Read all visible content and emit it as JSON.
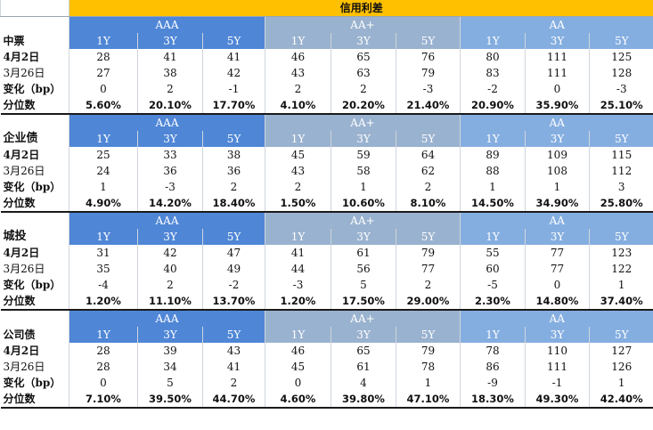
{
  "title": "信用利差",
  "grade_labels": [
    "AAA",
    "AA+",
    "AA"
  ],
  "tenor_labels": [
    "1Y",
    "3Y",
    "5Y"
  ],
  "colors": {
    "header_bar": "#ffc000",
    "aaa": "#4f86d6",
    "aa_plus": "#99b2cf",
    "aa": "#85aee0"
  },
  "sections": [
    {
      "name": "中票",
      "rows": [
        {
          "label": "4月2日",
          "values": [
            "28",
            "41",
            "41",
            "46",
            "65",
            "76",
            "80",
            "111",
            "125"
          ]
        },
        {
          "label": "3月26日",
          "values": [
            "27",
            "38",
            "42",
            "43",
            "63",
            "79",
            "83",
            "111",
            "128"
          ]
        },
        {
          "label": "变化（bp）",
          "values": [
            "0",
            "2",
            "-1",
            "2",
            "2",
            "-3",
            "-2",
            "0",
            "-3"
          ]
        },
        {
          "label": "分位数",
          "values": [
            "5.60%",
            "20.10%",
            "17.70%",
            "4.10%",
            "20.20%",
            "21.40%",
            "20.90%",
            "35.90%",
            "25.10%"
          ]
        }
      ]
    },
    {
      "name": "企业债",
      "rows": [
        {
          "label": "4月2日",
          "values": [
            "25",
            "33",
            "38",
            "45",
            "59",
            "64",
            "89",
            "109",
            "115"
          ]
        },
        {
          "label": "3月26日",
          "values": [
            "24",
            "36",
            "36",
            "43",
            "58",
            "62",
            "88",
            "108",
            "112"
          ]
        },
        {
          "label": "变化（bp）",
          "values": [
            "1",
            "-3",
            "2",
            "2",
            "1",
            "2",
            "1",
            "1",
            "3"
          ]
        },
        {
          "label": "分位数",
          "values": [
            "4.90%",
            "14.20%",
            "18.40%",
            "1.50%",
            "10.60%",
            "8.10%",
            "14.50%",
            "34.90%",
            "25.80%"
          ]
        }
      ]
    },
    {
      "name": "城投",
      "rows": [
        {
          "label": "4月2日",
          "values": [
            "31",
            "42",
            "47",
            "41",
            "61",
            "79",
            "55",
            "77",
            "123"
          ]
        },
        {
          "label": "3月26日",
          "values": [
            "35",
            "40",
            "49",
            "44",
            "56",
            "77",
            "60",
            "77",
            "122"
          ]
        },
        {
          "label": "变化（bp）",
          "values": [
            "-4",
            "2",
            "-2",
            "-3",
            "5",
            "2",
            "-5",
            "0",
            "1"
          ]
        },
        {
          "label": "分位数",
          "values": [
            "1.20%",
            "11.10%",
            "13.70%",
            "1.20%",
            "17.50%",
            "29.00%",
            "2.30%",
            "14.80%",
            "37.40%"
          ]
        }
      ]
    },
    {
      "name": "公司债",
      "rows": [
        {
          "label": "4月2日",
          "values": [
            "28",
            "39",
            "43",
            "46",
            "65",
            "79",
            "78",
            "110",
            "127"
          ]
        },
        {
          "label": "3月26日",
          "values": [
            "28",
            "34",
            "41",
            "45",
            "61",
            "78",
            "86",
            "111",
            "126"
          ]
        },
        {
          "label": "变化（bp）",
          "values": [
            "0",
            "5",
            "2",
            "0",
            "4",
            "1",
            "-9",
            "-1",
            "1"
          ]
        },
        {
          "label": "分位数",
          "values": [
            "7.10%",
            "39.50%",
            "44.70%",
            "4.60%",
            "39.80%",
            "47.10%",
            "18.30%",
            "49.30%",
            "42.40%"
          ]
        }
      ]
    }
  ]
}
